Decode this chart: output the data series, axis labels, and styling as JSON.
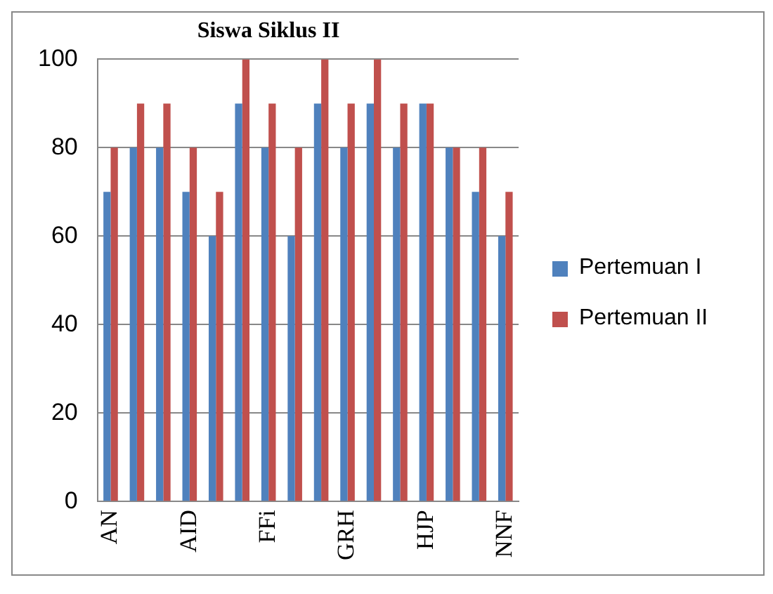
{
  "chart_data": {
    "type": "bar",
    "title": "Siswa Siklus II",
    "categories": [
      "AN",
      null,
      null,
      "AID",
      null,
      null,
      "FFi",
      null,
      null,
      "GRH",
      null,
      null,
      "HJP",
      null,
      null,
      "NNF"
    ],
    "series": [
      {
        "name": "Pertemuan I",
        "color": "#4f81bd",
        "values": [
          70,
          80,
          80,
          70,
          60,
          90,
          80,
          60,
          90,
          80,
          90,
          80,
          90,
          80,
          70,
          60
        ]
      },
      {
        "name": "Pertemuan II",
        "color": "#c0504d",
        "values": [
          80,
          90,
          90,
          80,
          70,
          100,
          90,
          80,
          100,
          90,
          100,
          90,
          90,
          80,
          80,
          70
        ]
      }
    ],
    "ylim": [
      0,
      100
    ],
    "yticks": [
      0,
      20,
      40,
      60,
      80,
      100
    ],
    "grid": "y",
    "legend": "right"
  }
}
